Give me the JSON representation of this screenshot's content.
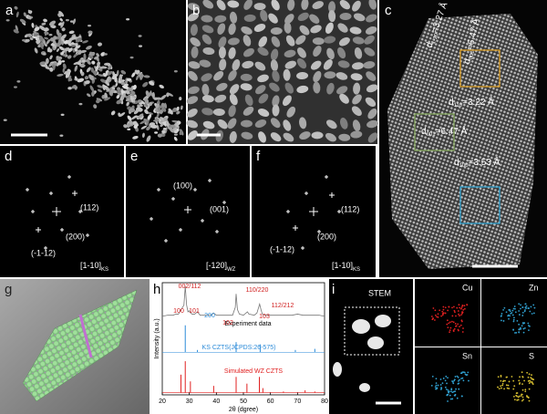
{
  "panel_labels": [
    "a",
    "b",
    "c",
    "d",
    "e",
    "f",
    "g",
    "h",
    "i"
  ],
  "panel_c": {
    "spacings": [
      {
        "d": "d",
        "sub": "1-10",
        "rest": "=3.27 Å"
      },
      {
        "d": "d",
        "sub": "001",
        "rest": "=6.47 Å"
      },
      {
        "d": "d",
        "sub": "110",
        "rest": "=3.22 Å"
      },
      {
        "d": "d",
        "sub": "001",
        "rest": "=6.47 Å"
      },
      {
        "d": "d",
        "sub": "100",
        "rest": "=3.53 Å"
      }
    ]
  },
  "panel_d": {
    "spots": [
      "(112)",
      "(200)",
      "(-1-12)"
    ],
    "zone": "[1-10]",
    "zone_sub": "KS"
  },
  "panel_e": {
    "spots": [
      "(100)",
      "(001)"
    ],
    "zone": "[-120]",
    "zone_sub": "WZ"
  },
  "panel_f": {
    "spots": [
      "(112)",
      "(-1-12)",
      "(200)"
    ],
    "zone": "[1-10]",
    "zone_sub": "KS"
  },
  "panel_i": {
    "title": "STEM",
    "maps": [
      "Cu",
      "Zn",
      "Sn",
      "S"
    ]
  },
  "chart_data": {
    "type": "line",
    "xlabel": "2θ (dgree)",
    "ylabel": "Intensity (a.u.)",
    "xlim": [
      20,
      80
    ],
    "xticks": [
      20,
      30,
      40,
      50,
      60,
      70,
      80
    ],
    "ylim": [
      0,
      100
    ],
    "series": [
      {
        "name": "Experiment data",
        "color": "#777777",
        "style": "line",
        "x": [
          20,
          22,
          24,
          25,
          26,
          26.9,
          27.5,
          28,
          28.5,
          29,
          29.5,
          30,
          30.5,
          31,
          32,
          33,
          34,
          36,
          38,
          39,
          40,
          42,
          44,
          46,
          47,
          47.3,
          47.8,
          48.5,
          50,
          51.5,
          52,
          54,
          55,
          56,
          56.5,
          57,
          58,
          60,
          62,
          65,
          68,
          70,
          72,
          75,
          78,
          80
        ],
        "values": [
          70,
          71,
          71,
          72,
          72,
          76,
          78,
          80,
          97,
          80,
          74,
          75,
          73,
          72,
          72,
          74,
          71,
          71,
          71,
          73,
          71,
          71,
          71,
          71,
          78,
          90,
          76,
          72,
          71,
          74,
          72,
          71,
          73,
          81,
          76,
          72,
          71,
          71,
          71,
          71,
          71,
          72,
          71,
          71,
          71,
          70
        ]
      },
      {
        "name": "KS CZTS(JCPDS:26-575)",
        "color": "#2a8ad8",
        "style": "sticks",
        "x": [
          28.5,
          33.0,
          47.3,
          56.2,
          69.2,
          76.4
        ],
        "values": [
          62,
          40,
          47,
          45,
          40,
          41
        ]
      },
      {
        "name": "Simulated WZ CZTS",
        "color": "#e02020",
        "style": "sticks",
        "x": [
          26.9,
          28.5,
          30.4,
          39.0,
          47.3,
          51.3,
          55.9,
          57.2,
          64.8,
          72.8,
          76.4
        ],
        "values": [
          18,
          30,
          12,
          8,
          16,
          10,
          16,
          6,
          3,
          4,
          3
        ]
      }
    ],
    "annotations": [
      {
        "text": "002/112",
        "color": "#d02020"
      },
      {
        "text": "100",
        "color": "#d02020"
      },
      {
        "text": "101",
        "color": "#d02020"
      },
      {
        "text": "200",
        "color": "#2a8ad8"
      },
      {
        "text": "102",
        "color": "#d02020"
      },
      {
        "text": "110/220",
        "color": "#d02020"
      },
      {
        "text": "103",
        "color": "#d02020"
      },
      {
        "text": "112/212",
        "color": "#d02020"
      }
    ]
  }
}
